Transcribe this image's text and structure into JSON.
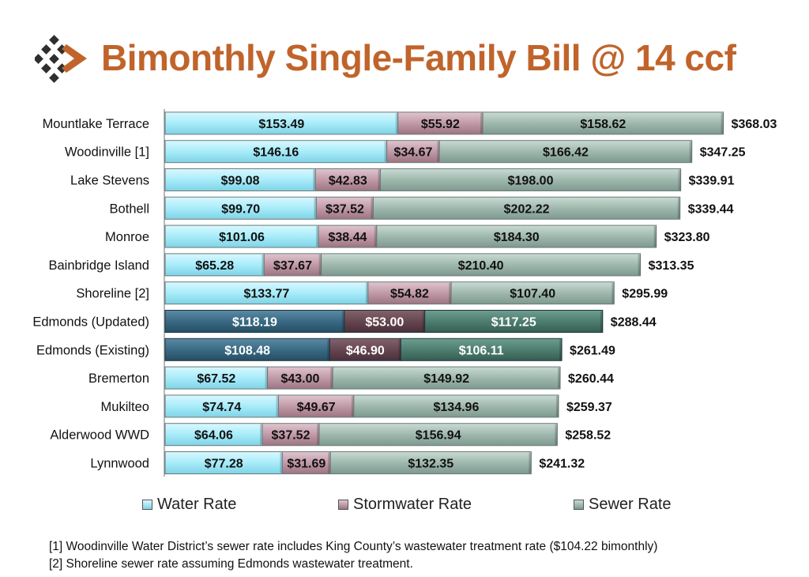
{
  "title": "Bimonthly Single-Family Bill @ 14 ccf",
  "colors": {
    "title": "#c0642b",
    "logo": "#c0642b",
    "water": "#a8ecfa",
    "stormwater": "#c19aa8",
    "sewer": "#9fb8ae",
    "water_highlight": "#3a6a84",
    "stormwater_highlight": "#664650",
    "sewer_highlight": "#4e7e70"
  },
  "chart_data": {
    "type": "bar",
    "orientation": "horizontal",
    "stacked": true,
    "categories": [
      "Mountlake Terrace",
      "Woodinville [1]",
      "Lake Stevens",
      "Bothell",
      "Monroe",
      "Bainbridge Island",
      "Shoreline [2]",
      "Edmonds (Updated)",
      "Edmonds (Existing)",
      "Bremerton",
      "Mukilteo",
      "Alderwood WWD",
      "Lynnwood"
    ],
    "highlighted": [
      "Edmonds (Updated)",
      "Edmonds (Existing)"
    ],
    "series": [
      {
        "name": "Water Rate",
        "values": [
          153.49,
          146.16,
          99.08,
          99.7,
          101.06,
          65.28,
          133.77,
          118.19,
          108.48,
          67.52,
          74.74,
          64.06,
          77.28
        ],
        "labels": [
          "$153.49",
          "$146.16",
          "$99.08",
          "$99.70",
          "$101.06",
          "$65.28",
          "$133.77",
          "$118.19",
          "$108.48",
          "$67.52",
          "$74.74",
          "$64.06",
          "$77.28"
        ]
      },
      {
        "name": "Stormwater Rate",
        "values": [
          55.92,
          34.67,
          42.83,
          37.52,
          38.44,
          37.67,
          54.82,
          53.0,
          46.9,
          43.0,
          49.67,
          37.52,
          31.69
        ],
        "labels": [
          "$55.92",
          "$34.67",
          "$42.83",
          "$37.52",
          "$38.44",
          "$37.67",
          "$54.82",
          "$53.00",
          "$46.90",
          "$43.00",
          "$49.67",
          "$37.52",
          "$31.69"
        ]
      },
      {
        "name": "Sewer Rate",
        "values": [
          158.62,
          166.42,
          198.0,
          202.22,
          184.3,
          210.4,
          107.4,
          117.25,
          106.11,
          149.92,
          134.96,
          156.94,
          132.35
        ],
        "labels": [
          "$158.62",
          "$166.42",
          "$198.00",
          "$202.22",
          "$184.30",
          "$210.40",
          "$107.40",
          "$117.25",
          "$106.11",
          "$149.92",
          "$134.96",
          "$156.94",
          "$132.35"
        ]
      }
    ],
    "totals": [
      368.03,
      347.25,
      339.91,
      339.44,
      323.8,
      313.35,
      295.99,
      288.44,
      261.49,
      260.44,
      259.37,
      258.52,
      241.32
    ],
    "total_labels": [
      "$368.03",
      "$347.25",
      "$339.91",
      "$339.44",
      "$323.80",
      "$313.35",
      "$295.99",
      "$288.44",
      "$261.49",
      "$260.44",
      "$259.37",
      "$258.52",
      "$241.32"
    ],
    "xlim": [
      0,
      400
    ],
    "grid": false,
    "legend": "bottom"
  },
  "legend": {
    "water": "Water Rate",
    "stormwater": "Stormwater Rate",
    "sewer": "Sewer Rate"
  },
  "footnotes": [
    "[1] Woodinville Water District’s sewer rate includes King County’s wastewater treatment rate ($104.22 bimonthly)",
    "[2] Shoreline sewer rate assuming Edmonds wastewater treatment."
  ]
}
